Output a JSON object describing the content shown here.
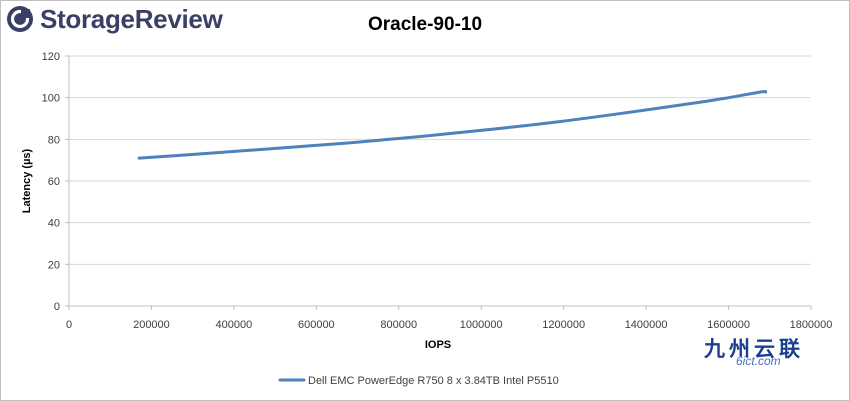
{
  "brand": {
    "name": "StorageReview",
    "icon": "storagereview-logo-icon",
    "color": "#3a3f66"
  },
  "watermark": {
    "chinese": "九州云联",
    "sub": "6ict.com"
  },
  "chart_data": {
    "type": "line",
    "title": "Oracle-90-10",
    "xlabel": "IOPS",
    "ylabel": "Latency (µs)",
    "xlim": [
      0,
      1800000
    ],
    "ylim": [
      0,
      120
    ],
    "x_ticks": [
      "0",
      "200000",
      "400000",
      "600000",
      "800000",
      "1000000",
      "1200000",
      "1400000",
      "1600000",
      "1800000"
    ],
    "y_ticks": [
      "0",
      "20",
      "40",
      "60",
      "80",
      "100",
      "120"
    ],
    "grid": "horizontal",
    "legend_position": "bottom",
    "series": [
      {
        "name": "Dell EMC PowerEdge R750 8 x 3.84TB Intel P5510",
        "color": "#4f81bd",
        "points": [
          [
            170000,
            71.0
          ],
          [
            340000,
            73.3
          ],
          [
            510000,
            75.8
          ],
          [
            680000,
            78.3
          ],
          [
            850000,
            81.3
          ],
          [
            1020000,
            84.7
          ],
          [
            1190000,
            88.5
          ],
          [
            1360000,
            93.0
          ],
          [
            1530000,
            97.8
          ],
          [
            1600000,
            100.0
          ],
          [
            1680000,
            102.8
          ],
          [
            1690000,
            102.7
          ]
        ]
      }
    ]
  }
}
